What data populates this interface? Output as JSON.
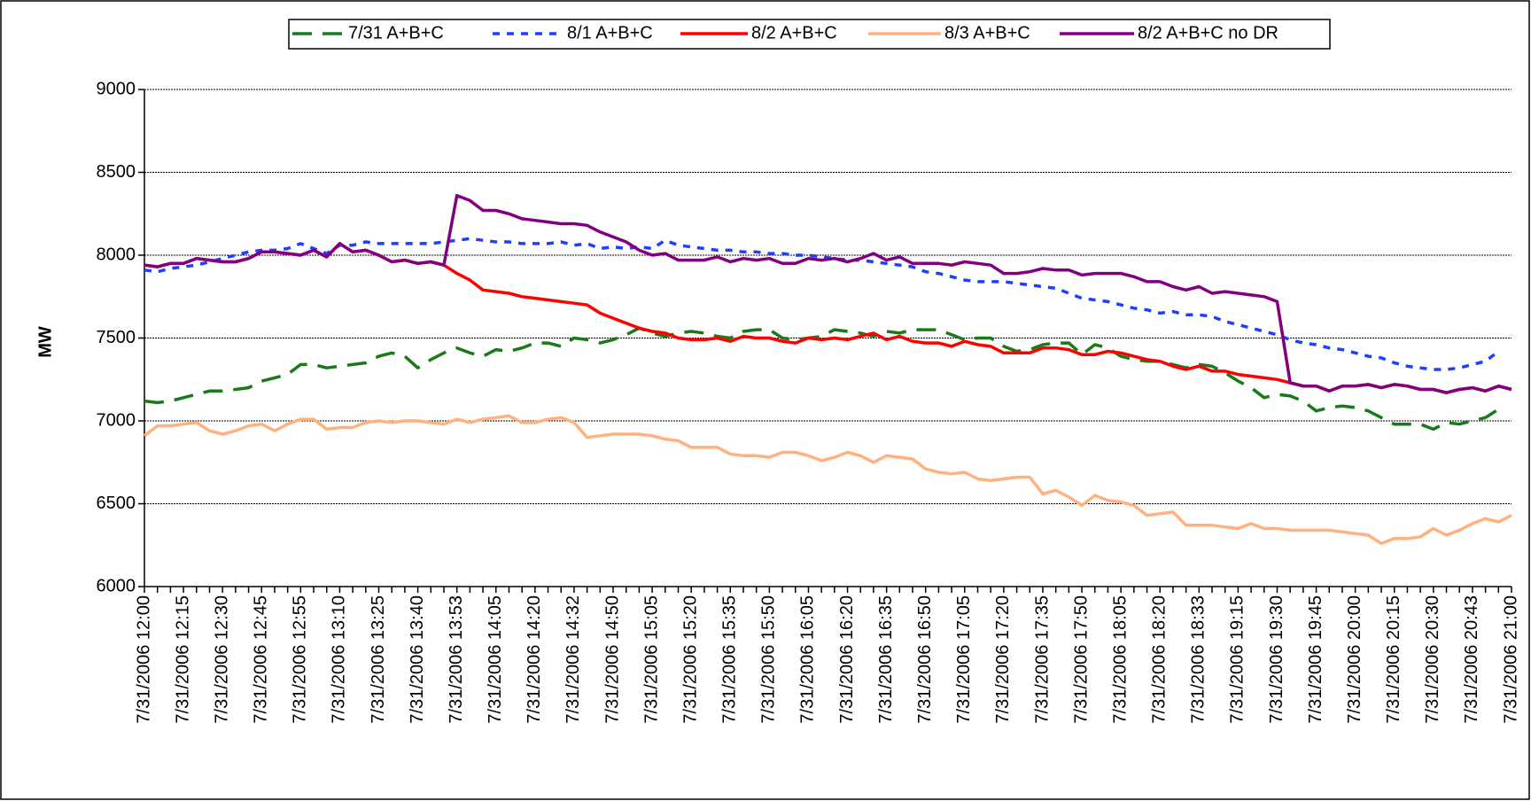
{
  "chart_data": {
    "type": "line",
    "y_label": "MW",
    "ylim": [
      6000,
      9000
    ],
    "yticks": [
      6000,
      6500,
      7000,
      7500,
      8000,
      8500,
      9000
    ],
    "grid": true,
    "legend": "top",
    "categories": [
      "7/31/2006 12:00",
      null,
      null,
      "7/31/2006 12:15",
      null,
      null,
      "7/31/2006 12:30",
      null,
      null,
      "7/31/2006 12:45",
      null,
      null,
      "7/31/2006 12:55",
      null,
      null,
      "7/31/2006 13:10",
      null,
      null,
      "7/31/2006 13:25",
      null,
      null,
      "7/31/2006 13:40",
      null,
      null,
      "7/31/2006 13:53",
      null,
      null,
      "7/31/2006 14:05",
      null,
      null,
      "7/31/2006 14:20",
      null,
      null,
      "7/31/2006 14:32",
      null,
      null,
      "7/31/2006 14:50",
      null,
      null,
      "7/31/2006 15:05",
      null,
      null,
      "7/31/2006 15:20",
      null,
      null,
      "7/31/2006 15:35",
      null,
      null,
      "7/31/2006 15:50",
      null,
      null,
      "7/31/2006 16:05",
      null,
      null,
      "7/31/2006 16:20",
      null,
      null,
      "7/31/2006 16:35",
      null,
      null,
      "7/31/2006 16:50",
      null,
      null,
      "7/31/2006 17:05",
      null,
      null,
      "7/31/2006 17:20",
      null,
      null,
      "7/31/2006 17:35",
      null,
      null,
      "7/31/2006 17:50",
      null,
      null,
      "7/31/2006 18:05",
      null,
      null,
      "7/31/2006 18:20",
      null,
      null,
      "7/31/2006 18:33",
      null,
      null,
      "7/31/2006 19:15",
      null,
      null,
      "7/31/2006 19:30",
      null,
      null,
      "7/31/2006 19:45",
      null,
      null,
      "7/31/2006 20:00",
      null,
      null,
      "7/31/2006 20:15",
      null,
      null,
      "7/31/2006 20:30",
      null,
      null,
      "7/31/2006 20:43",
      null,
      null,
      "7/31/2006 21:00"
    ],
    "series": [
      {
        "name": "7/31 A+B+C",
        "color": "#1a7a1a",
        "line_style": "dashed",
        "values": [
          7120,
          7110,
          7120,
          7140,
          7160,
          7180,
          7180,
          7190,
          7200,
          7240,
          7260,
          7280,
          7340,
          7340,
          7320,
          7330,
          7340,
          7350,
          7390,
          7410,
          7390,
          7320,
          7370,
          7410,
          7440,
          7410,
          7390,
          7430,
          7420,
          7440,
          7470,
          7470,
          7450,
          7500,
          7490,
          7470,
          7490,
          7520,
          7560,
          7530,
          7510,
          7530,
          7540,
          7530,
          7510,
          7500,
          7540,
          7550,
          7550,
          7500,
          7490,
          7500,
          7510,
          7550,
          7540,
          7530,
          7510,
          7540,
          7530,
          7550,
          7550,
          7550,
          7520,
          7490,
          7500,
          7500,
          7450,
          7420,
          7430,
          7460,
          7470,
          7470,
          7400,
          7460,
          7440,
          7390,
          7370,
          7360,
          7360,
          7340,
          7320,
          7340,
          7330,
          7290,
          7240,
          7200,
          7140,
          7160,
          7150,
          7120,
          7060,
          7080,
          7090,
          7080,
          7060,
          7020,
          6980,
          6980,
          6980,
          6950,
          6990,
          6980,
          7000,
          7020,
          7070,
          null
        ]
      },
      {
        "name": "8/1 A+B+C",
        "color": "#1f3fff",
        "line_style": "dotted",
        "values": [
          7910,
          7900,
          7920,
          7930,
          7940,
          7960,
          7980,
          8000,
          8020,
          8030,
          8030,
          8040,
          8070,
          8040,
          8010,
          8060,
          8060,
          8080,
          8070,
          8070,
          8070,
          8070,
          8070,
          8080,
          8090,
          8100,
          8090,
          8080,
          8080,
          8070,
          8070,
          8070,
          8080,
          8060,
          8070,
          8040,
          8050,
          8040,
          8050,
          8040,
          8090,
          8060,
          8050,
          8040,
          8030,
          8030,
          8020,
          8020,
          8010,
          8010,
          8000,
          8000,
          7990,
          7980,
          7970,
          7970,
          7960,
          7950,
          7940,
          7930,
          7900,
          7890,
          7870,
          7850,
          7840,
          7840,
          7840,
          7830,
          7820,
          7810,
          7800,
          7770,
          7740,
          7730,
          7720,
          7700,
          7680,
          7670,
          7650,
          7660,
          7640,
          7640,
          7630,
          7600,
          7580,
          7560,
          7540,
          7520,
          7490,
          7470,
          7460,
          7440,
          7430,
          7410,
          7390,
          7380,
          7350,
          7330,
          7320,
          7310,
          7310,
          7320,
          7340,
          7360,
          7420,
          null
        ]
      },
      {
        "name": "8/2 A+B+C",
        "color": "#ff0000",
        "line_style": "solid",
        "values": [
          7940,
          7930,
          7950,
          7950,
          7980,
          7970,
          7960,
          7960,
          7980,
          8020,
          8020,
          8010,
          8000,
          8030,
          7990,
          8070,
          8020,
          8030,
          8000,
          7960,
          7970,
          7950,
          7960,
          7940,
          7890,
          7850,
          7790,
          7780,
          7770,
          7750,
          7740,
          7730,
          7720,
          7710,
          7700,
          7650,
          7620,
          7590,
          7560,
          7540,
          7530,
          7500,
          7490,
          7490,
          7500,
          7480,
          7510,
          7500,
          7500,
          7480,
          7470,
          7500,
          7490,
          7500,
          7490,
          7510,
          7530,
          7490,
          7510,
          7480,
          7470,
          7470,
          7450,
          7480,
          7460,
          7450,
          7410,
          7410,
          7410,
          7440,
          7440,
          7430,
          7400,
          7400,
          7420,
          7410,
          7390,
          7370,
          7360,
          7330,
          7310,
          7330,
          7300,
          7300,
          7280,
          7270,
          7260,
          7250,
          7230,
          7210,
          7210,
          7180,
          7210,
          7210,
          7220,
          7200,
          7220,
          7210,
          7190,
          7190,
          7170,
          7190,
          7200,
          7180,
          7210,
          7190
        ]
      },
      {
        "name": "8/3 A+B+C",
        "color": "#ffb27f",
        "line_style": "solid",
        "values": [
          6910,
          6970,
          6970,
          6980,
          6990,
          6940,
          6920,
          6940,
          6970,
          6980,
          6940,
          6980,
          7010,
          7010,
          6950,
          6960,
          6960,
          6990,
          7000,
          6990,
          7000,
          7000,
          6990,
          6980,
          7010,
          6990,
          7010,
          7020,
          7030,
          6990,
          6990,
          7010,
          7020,
          6990,
          6900,
          6910,
          6920,
          6920,
          6920,
          6910,
          6890,
          6880,
          6840,
          6840,
          6840,
          6800,
          6790,
          6790,
          6780,
          6810,
          6810,
          6790,
          6760,
          6780,
          6810,
          6790,
          6750,
          6790,
          6780,
          6770,
          6710,
          6690,
          6680,
          6690,
          6650,
          6640,
          6650,
          6660,
          6660,
          6560,
          6580,
          6540,
          6490,
          6550,
          6520,
          6510,
          6490,
          6430,
          6440,
          6450,
          6370,
          6370,
          6370,
          6360,
          6350,
          6380,
          6350,
          6350,
          6340,
          6340,
          6340,
          6340,
          6330,
          6320,
          6310,
          6260,
          6290,
          6290,
          6300,
          6350,
          6310,
          6340,
          6380,
          6410,
          6390,
          6430
        ]
      },
      {
        "name": "8/2 A+B+C no DR",
        "color": "#800080",
        "line_style": "solid",
        "values": [
          7940,
          7930,
          7950,
          7950,
          7980,
          7970,
          7960,
          7960,
          7980,
          8020,
          8020,
          8010,
          8000,
          8030,
          7990,
          8070,
          8020,
          8030,
          8000,
          7960,
          7970,
          7950,
          7960,
          7940,
          8360,
          8330,
          8270,
          8270,
          8250,
          8220,
          8210,
          8200,
          8190,
          8190,
          8180,
          8140,
          8110,
          8080,
          8030,
          8000,
          8010,
          7970,
          7970,
          7970,
          7990,
          7960,
          7980,
          7970,
          7980,
          7950,
          7950,
          7980,
          7970,
          7980,
          7960,
          7980,
          8010,
          7970,
          7990,
          7950,
          7950,
          7950,
          7940,
          7960,
          7950,
          7940,
          7890,
          7890,
          7900,
          7920,
          7910,
          7910,
          7880,
          7890,
          7890,
          7890,
          7870,
          7840,
          7840,
          7810,
          7790,
          7810,
          7770,
          7780,
          7770,
          7760,
          7750,
          7720,
          7230,
          7210,
          7210,
          7180,
          7210,
          7210,
          7220,
          7200,
          7220,
          7210,
          7190,
          7190,
          7170,
          7190,
          7200,
          7180,
          7210,
          7190
        ]
      }
    ]
  }
}
